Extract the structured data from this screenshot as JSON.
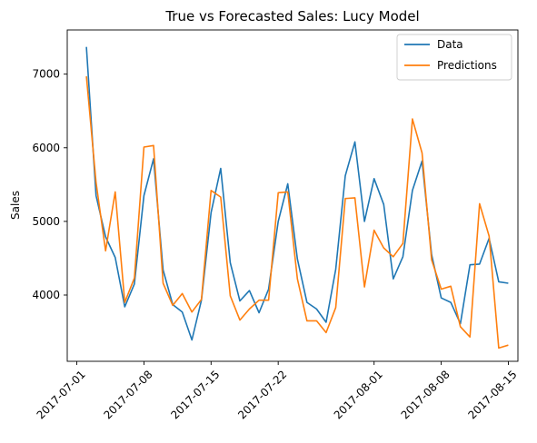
{
  "chart_data": {
    "type": "line",
    "title": "True vs Forecasted Sales: Lucy Model",
    "xlabel": "",
    "ylabel": "Sales",
    "xlim": [
      "2017-06-30",
      "2017-08-16"
    ],
    "ylim": [
      3100,
      7600
    ],
    "x_ticks": [
      "2017-07-01",
      "2017-07-08",
      "2017-07-15",
      "2017-07-22",
      "2017-08-01",
      "2017-08-08",
      "2017-08-15"
    ],
    "y_ticks": [
      4000,
      5000,
      6000,
      7000
    ],
    "grid": false,
    "legend_position": "top-right",
    "x": [
      "2017-07-02",
      "2017-07-03",
      "2017-07-04",
      "2017-07-05",
      "2017-07-06",
      "2017-07-07",
      "2017-07-08",
      "2017-07-09",
      "2017-07-10",
      "2017-07-11",
      "2017-07-12",
      "2017-07-13",
      "2017-07-14",
      "2017-07-15",
      "2017-07-16",
      "2017-07-17",
      "2017-07-18",
      "2017-07-19",
      "2017-07-20",
      "2017-07-21",
      "2017-07-22",
      "2017-07-23",
      "2017-07-24",
      "2017-07-25",
      "2017-07-26",
      "2017-07-27",
      "2017-07-28",
      "2017-07-29",
      "2017-07-30",
      "2017-07-31",
      "2017-08-01",
      "2017-08-02",
      "2017-08-03",
      "2017-08-04",
      "2017-08-05",
      "2017-08-06",
      "2017-08-07",
      "2017-08-08",
      "2017-08-09",
      "2017-08-10",
      "2017-08-11",
      "2017-08-12",
      "2017-08-13",
      "2017-08-14",
      "2017-08-15",
      "2017-08-16"
    ],
    "series": [
      {
        "name": "Data",
        "color": "#1f77b4",
        "values": [
          7370,
          5350,
          4790,
          4510,
          3840,
          4150,
          5350,
          5850,
          4340,
          3870,
          3770,
          3390,
          3930,
          5120,
          5720,
          4440,
          3920,
          4060,
          3760,
          4080,
          5000,
          5510,
          4490,
          3900,
          3810,
          3630,
          4350,
          5620,
          6080,
          5000,
          5580,
          5230,
          4220,
          4520,
          5420,
          5820,
          4550,
          3960,
          3900,
          3610,
          4410,
          4420,
          4770,
          4180,
          4160,
          null
        ]
      },
      {
        "name": "Predictions",
        "color": "#ff7f0e",
        "values": [
          6970,
          5530,
          4600,
          5400,
          3900,
          4230,
          6010,
          6030,
          4160,
          3860,
          4020,
          3770,
          3940,
          5420,
          5330,
          3990,
          3660,
          3810,
          3930,
          3930,
          5390,
          5400,
          4220,
          3650,
          3650,
          3490,
          3830,
          5310,
          5320,
          4110,
          4880,
          4640,
          4520,
          4700,
          6390,
          5930,
          4480,
          4080,
          4120,
          3570,
          3430,
          5240,
          4800,
          3280,
          3320,
          null
        ]
      }
    ]
  }
}
